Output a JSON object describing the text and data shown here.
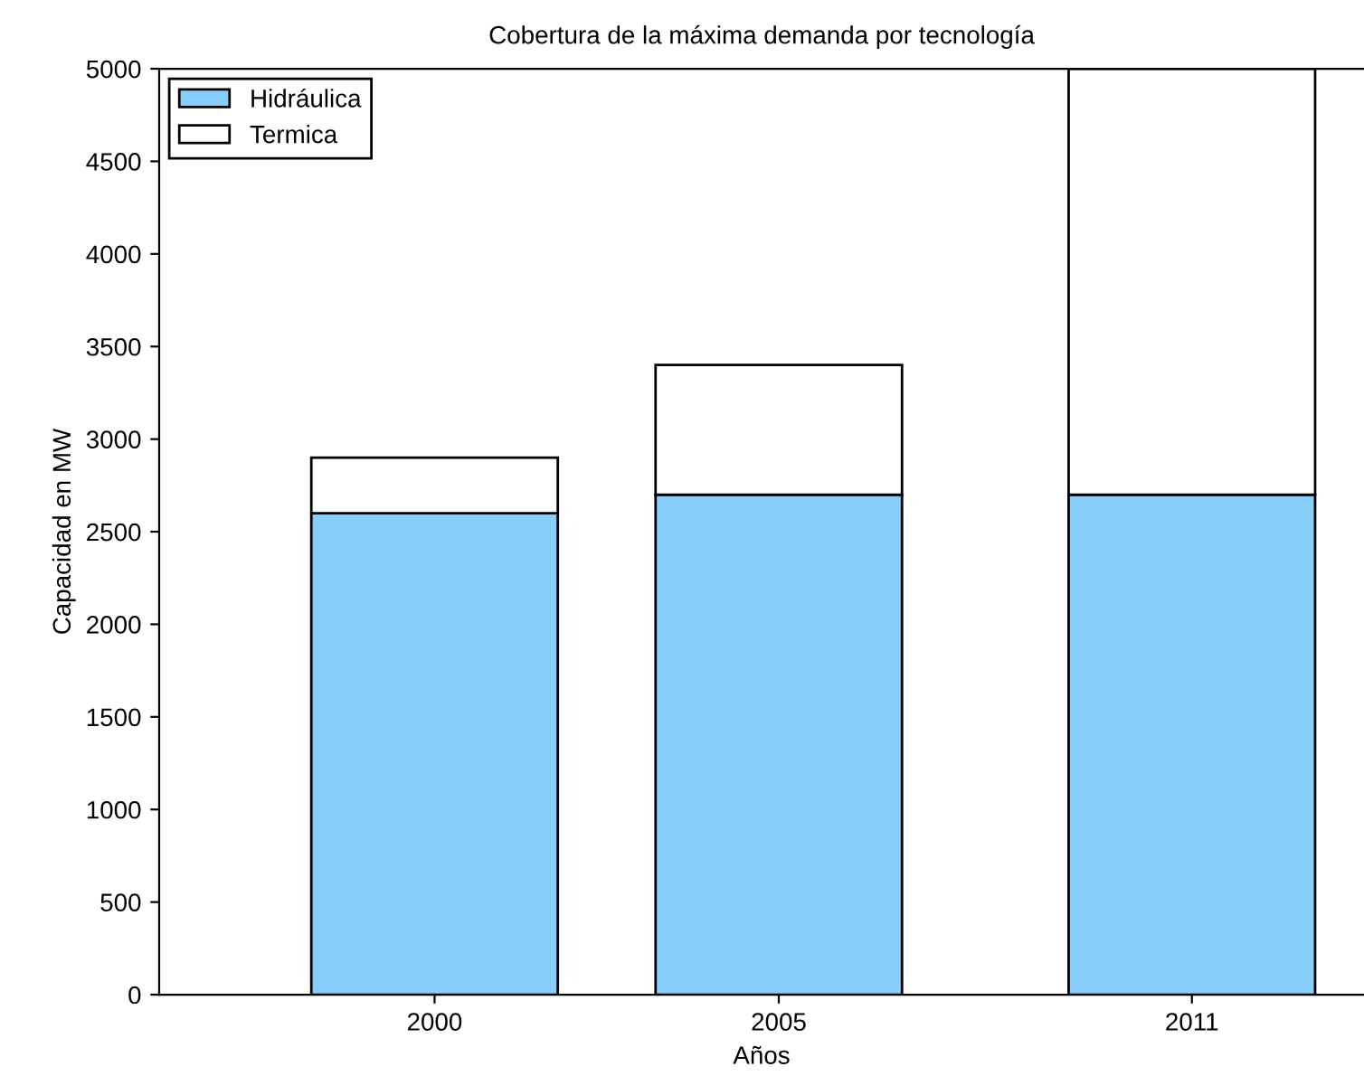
{
  "chart_data": {
    "type": "bar",
    "title": "Cobertura de la máxima demanda por tecnología",
    "xlabel": "Años",
    "ylabel": "Capacidad en MW",
    "x": [
      2000,
      2005,
      2011
    ],
    "stacked": true,
    "series": [
      {
        "name": "Hidráulica",
        "color": "#87cefa",
        "values": [
          2600,
          2700,
          2700
        ]
      },
      {
        "name": "Termica",
        "color": "#ffffff",
        "values": [
          300,
          700,
          2300
        ]
      }
    ],
    "xlim": [
      1996,
      2013.5
    ],
    "xticks": [
      2000,
      2005,
      2011
    ],
    "ylim": [
      0,
      5000
    ],
    "yticks": [
      0,
      500,
      1000,
      1500,
      2000,
      2500,
      3000,
      3500,
      4000,
      4500,
      5000
    ],
    "grid": false,
    "legend": "top left"
  }
}
